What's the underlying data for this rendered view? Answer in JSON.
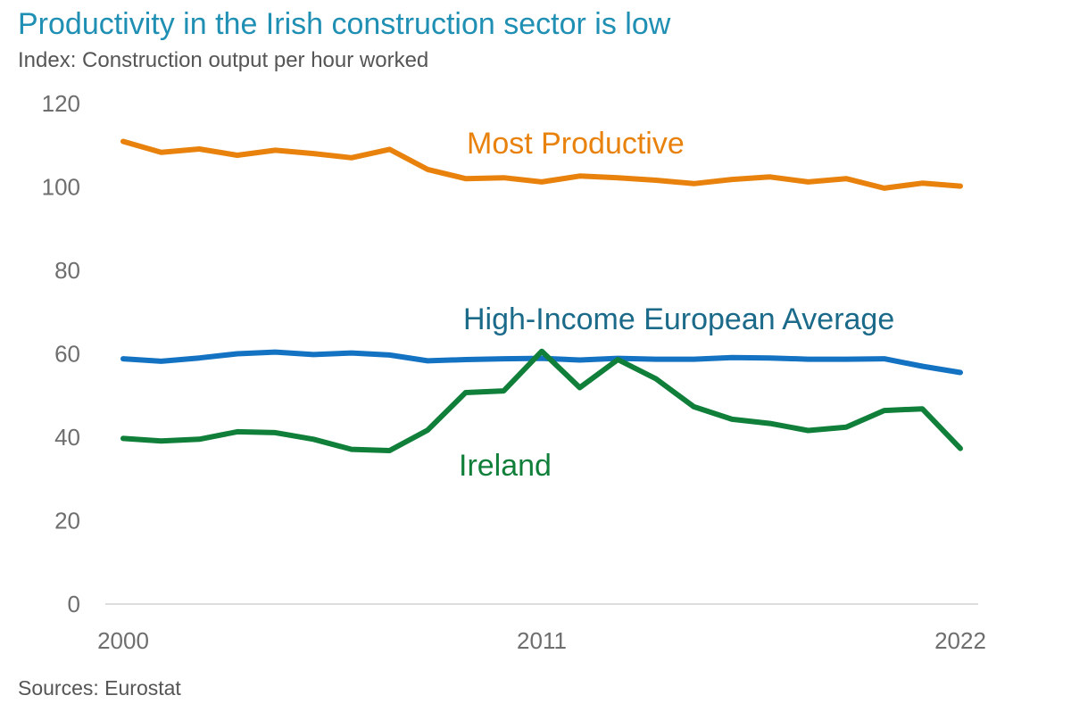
{
  "header": {
    "title": "Productivity in the Irish construction sector is low",
    "subtitle": "Index: Construction output per hour worked"
  },
  "footer": {
    "source": "Sources: Eurostat"
  },
  "chart_data": {
    "type": "line",
    "title": "Productivity in the Irish construction sector is low",
    "subtitle": "Index: Construction output per hour worked",
    "xlabel": "",
    "ylabel": "",
    "x": [
      2000,
      2001,
      2002,
      2003,
      2004,
      2005,
      2006,
      2007,
      2008,
      2009,
      2010,
      2011,
      2012,
      2013,
      2014,
      2015,
      2016,
      2017,
      2018,
      2019,
      2020,
      2021,
      2022
    ],
    "x_ticks": [
      2000,
      2011,
      2022
    ],
    "x_tick_labels": [
      "2000",
      "2011",
      "2022"
    ],
    "ylim": [
      0,
      120
    ],
    "y_ticks": [
      0,
      20,
      40,
      60,
      80,
      100,
      120
    ],
    "y_tick_labels": [
      "0",
      "20",
      "40",
      "60",
      "80",
      "100",
      "120"
    ],
    "grid": false,
    "legend": "none (series labelled directly on chart)",
    "series": [
      {
        "name": "Most Productive",
        "color": "#e8820c",
        "values": [
          110.9,
          108.3,
          109.1,
          107.6,
          108.8,
          108.0,
          107.0,
          109.0,
          104.2,
          102.0,
          102.2,
          101.2,
          102.6,
          102.2,
          101.6,
          100.8,
          101.8,
          102.4,
          101.2,
          102.0,
          99.7,
          100.9,
          100.2
        ]
      },
      {
        "name": "High-Income European Average",
        "color": "#1372c2",
        "values": [
          58.8,
          58.2,
          59.0,
          60.0,
          60.4,
          59.8,
          60.2,
          59.7,
          58.3,
          58.6,
          58.8,
          58.9,
          58.5,
          58.9,
          58.7,
          58.7,
          59.1,
          59.0,
          58.7,
          58.7,
          58.8,
          57.0,
          55.5
        ]
      },
      {
        "name": "Ireland",
        "color": "#0f7f3a",
        "values": [
          39.7,
          39.1,
          39.5,
          41.3,
          41.1,
          39.5,
          37.1,
          36.8,
          41.7,
          50.7,
          51.1,
          60.6,
          51.9,
          58.6,
          54.0,
          47.3,
          44.3,
          43.3,
          41.6,
          42.4,
          46.4,
          46.8,
          37.3
        ]
      }
    ]
  }
}
